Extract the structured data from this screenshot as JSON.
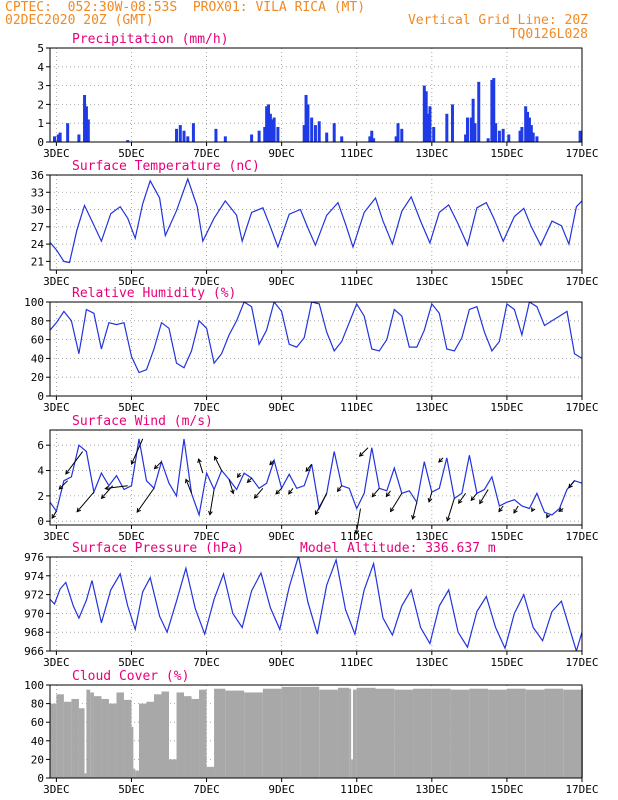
{
  "header": {
    "line1": "CPTEC:  052:30W-08:53S  PROX01: VILA RICA (MT)",
    "line2_left": "02DEC2020 20Z (GMT)",
    "line2_right": "Vertical Grid Line: 20Z",
    "line3_right": "TQ0126L028"
  },
  "colors": {
    "header": "#f08a24",
    "title": "#e8007a",
    "line": "#2233dd",
    "bar": "#1f3be6",
    "cloud": "#a8a8a8",
    "arrow": "#000000",
    "grid": "#999999"
  },
  "x_ticks": [
    "3DEC",
    "5DEC",
    "7DEC",
    "9DEC",
    "11DEC",
    "13DEC",
    "15DEC",
    "17DEC"
  ],
  "chart_data": [
    {
      "type": "bar",
      "title": "Precipitation (mm/h)",
      "ylim": [
        0,
        5
      ],
      "yticks": [
        0,
        1,
        2,
        3,
        4,
        5
      ],
      "x_range_days": [
        2.83,
        17.0
      ],
      "x_unit": "day of DEC 2020",
      "x": [
        2.95,
        3.05,
        3.1,
        3.3,
        3.6,
        3.75,
        3.8,
        3.85,
        4.9,
        6.2,
        6.3,
        6.4,
        6.5,
        6.65,
        7.25,
        7.5,
        8.2,
        8.4,
        8.55,
        8.6,
        8.65,
        8.7,
        8.75,
        8.8,
        8.9,
        9.6,
        9.65,
        9.7,
        9.8,
        9.9,
        10.0,
        10.2,
        10.4,
        10.6,
        11.35,
        11.4,
        11.45,
        12.05,
        12.1,
        12.2,
        12.8,
        12.85,
        12.9,
        12.95,
        13.05,
        13.4,
        13.55,
        13.9,
        13.95,
        14.05,
        14.1,
        14.15,
        14.25,
        14.5,
        14.6,
        14.65,
        14.7,
        14.8,
        14.9,
        15.05,
        15.35,
        15.4,
        15.5,
        15.55,
        15.6,
        15.65,
        15.7,
        15.8,
        16.95
      ],
      "values": [
        0.3,
        0.4,
        0.5,
        1.0,
        0.4,
        2.5,
        1.9,
        1.2,
        0.1,
        0.7,
        0.9,
        0.6,
        0.3,
        1.0,
        0.7,
        0.3,
        0.4,
        0.6,
        0.8,
        1.9,
        2.0,
        1.5,
        1.2,
        1.3,
        0.8,
        0.9,
        2.5,
        2.0,
        1.3,
        0.9,
        1.1,
        0.5,
        1.0,
        0.3,
        0.3,
        0.6,
        0.2,
        0.3,
        1.0,
        0.7,
        3.0,
        2.7,
        1.5,
        1.9,
        0.8,
        1.5,
        2.0,
        0.4,
        1.3,
        1.3,
        2.3,
        1.0,
        3.2,
        0.2,
        3.3,
        3.4,
        1.0,
        0.6,
        0.7,
        0.4,
        0.6,
        0.8,
        1.9,
        1.6,
        1.3,
        0.9,
        0.5,
        0.3,
        0.6
      ]
    },
    {
      "type": "line",
      "title": "Surface Temperature (nC)",
      "ylim": [
        19.5,
        36
      ],
      "yticks": [
        21,
        24,
        27,
        30,
        33,
        36
      ],
      "x_range_days": [
        2.83,
        17.0
      ],
      "x": [
        2.83,
        3.0,
        3.2,
        3.35,
        3.55,
        3.75,
        3.95,
        4.2,
        4.45,
        4.7,
        4.9,
        5.1,
        5.3,
        5.5,
        5.75,
        5.9,
        6.2,
        6.5,
        6.75,
        6.9,
        7.2,
        7.5,
        7.8,
        7.95,
        8.2,
        8.5,
        8.7,
        8.9,
        9.2,
        9.5,
        9.7,
        9.9,
        10.2,
        10.5,
        10.7,
        10.9,
        11.2,
        11.5,
        11.7,
        11.95,
        12.2,
        12.45,
        12.7,
        12.95,
        13.2,
        13.45,
        13.7,
        13.95,
        14.2,
        14.45,
        14.65,
        14.9,
        15.2,
        15.45,
        15.65,
        15.9,
        16.2,
        16.45,
        16.65,
        16.85,
        17.0
      ],
      "values": [
        24.3,
        23.0,
        21.0,
        20.8,
        26.5,
        30.7,
        28.0,
        24.5,
        29.3,
        30.5,
        28.5,
        25.0,
        31.0,
        35.0,
        32.0,
        25.5,
        29.8,
        35.3,
        30.5,
        24.5,
        28.5,
        31.5,
        29.0,
        24.5,
        29.5,
        30.3,
        27.0,
        23.5,
        29.2,
        30.0,
        26.8,
        23.8,
        29.0,
        31.2,
        27.5,
        23.5,
        29.5,
        32.0,
        28.0,
        24.0,
        29.7,
        32.2,
        28.0,
        24.2,
        29.5,
        30.8,
        27.5,
        23.8,
        30.3,
        31.2,
        28.5,
        24.5,
        28.8,
        30.2,
        27.0,
        23.8,
        28.0,
        27.2,
        24.0,
        30.5,
        31.5
      ]
    },
    {
      "type": "line",
      "title": "Relative Humidity (%)",
      "ylim": [
        0,
        100
      ],
      "yticks": [
        0,
        20,
        40,
        60,
        80,
        100
      ],
      "x_range_days": [
        2.83,
        17.0
      ],
      "x": [
        2.83,
        3.0,
        3.2,
        3.4,
        3.6,
        3.8,
        4.0,
        4.2,
        4.4,
        4.6,
        4.8,
        5.0,
        5.2,
        5.4,
        5.6,
        5.8,
        6.0,
        6.2,
        6.4,
        6.6,
        6.8,
        7.0,
        7.2,
        7.4,
        7.6,
        7.8,
        8.0,
        8.2,
        8.4,
        8.6,
        8.8,
        9.0,
        9.2,
        9.4,
        9.6,
        9.8,
        10.0,
        10.2,
        10.4,
        10.6,
        10.8,
        11.0,
        11.2,
        11.4,
        11.6,
        11.8,
        12.0,
        12.2,
        12.4,
        12.6,
        12.8,
        13.0,
        13.2,
        13.4,
        13.6,
        13.8,
        14.0,
        14.2,
        14.4,
        14.6,
        14.8,
        15.0,
        15.2,
        15.4,
        15.6,
        15.8,
        16.0,
        16.2,
        16.4,
        16.6,
        16.8,
        17.0
      ],
      "values": [
        70,
        78,
        90,
        80,
        45,
        92,
        88,
        50,
        78,
        76,
        78,
        42,
        25,
        28,
        50,
        78,
        72,
        35,
        30,
        48,
        80,
        72,
        35,
        45,
        65,
        80,
        100,
        95,
        55,
        70,
        100,
        90,
        55,
        52,
        62,
        100,
        98,
        68,
        48,
        58,
        78,
        98,
        85,
        50,
        48,
        60,
        92,
        85,
        52,
        52,
        70,
        98,
        88,
        50,
        48,
        62,
        92,
        95,
        68,
        48,
        58,
        98,
        92,
        65,
        100,
        95,
        75,
        80,
        85,
        90,
        45,
        40
      ],
      "extra_points": [
        [
          16.7,
          35
        ],
        [
          16.95,
          60
        ]
      ]
    },
    {
      "type": "line",
      "title": "Surface Wind (m/s)",
      "ylim": [
        -0.3,
        7.2
      ],
      "yticks": [
        0,
        2,
        4,
        6
      ],
      "x_range_days": [
        2.83,
        17.0
      ],
      "x": [
        2.83,
        3.0,
        3.2,
        3.4,
        3.6,
        3.8,
        4.0,
        4.2,
        4.4,
        4.6,
        4.8,
        5.0,
        5.2,
        5.4,
        5.6,
        5.8,
        6.0,
        6.2,
        6.4,
        6.6,
        6.8,
        7.0,
        7.2,
        7.4,
        7.6,
        7.8,
        8.0,
        8.2,
        8.4,
        8.6,
        8.8,
        9.0,
        9.2,
        9.4,
        9.6,
        9.8,
        10.0,
        10.2,
        10.4,
        10.6,
        10.8,
        11.0,
        11.2,
        11.4,
        11.6,
        11.8,
        12.0,
        12.2,
        12.4,
        12.6,
        12.8,
        13.0,
        13.2,
        13.4,
        13.6,
        13.8,
        14.0,
        14.2,
        14.4,
        14.6,
        14.8,
        15.0,
        15.2,
        15.4,
        15.6,
        15.8,
        16.0,
        16.2,
        16.4,
        16.6,
        16.8,
        17.0
      ],
      "values": [
        1.5,
        0.8,
        3.2,
        3.5,
        6.0,
        5.5,
        2.3,
        3.8,
        2.8,
        3.6,
        2.5,
        2.8,
        6.5,
        3.2,
        2.6,
        4.7,
        3.0,
        2.0,
        6.5,
        2.2,
        0.5,
        3.8,
        2.5,
        4.0,
        3.3,
        2.5,
        3.8,
        3.4,
        2.6,
        3.0,
        4.8,
        2.6,
        3.7,
        2.6,
        2.8,
        4.5,
        1.0,
        2.2,
        5.5,
        2.8,
        2.6,
        1.0,
        2.2,
        5.8,
        2.6,
        2.4,
        4.2,
        2.2,
        2.4,
        1.5,
        4.7,
        2.3,
        2.6,
        5.0,
        1.8,
        2.2,
        5.2,
        2.2,
        2.5,
        3.5,
        1.2,
        1.5,
        1.7,
        1.2,
        1.0,
        2.2,
        0.7,
        0.5,
        1.0,
        2.5,
        3.2,
        3.0
      ],
      "arrows": [
        [
          3.0,
          -0.3,
          0.5
        ],
        [
          3.3,
          -0.6,
          0.6
        ],
        [
          3.7,
          -1.2,
          1.6
        ],
        [
          4.0,
          -1.2,
          1.4
        ],
        [
          4.5,
          -0.8,
          0.9
        ],
        [
          4.9,
          -1.6,
          0.2
        ],
        [
          5.3,
          -0.8,
          1.8
        ],
        [
          5.6,
          -1.2,
          1.7
        ],
        [
          5.8,
          -0.5,
          0.5
        ],
        [
          6.6,
          -0.4,
          -1.0
        ],
        [
          6.9,
          -0.3,
          -1.0
        ],
        [
          7.2,
          -0.3,
          1.8
        ],
        [
          7.4,
          -0.5,
          -1.0
        ],
        [
          7.6,
          0.3,
          1.0
        ],
        [
          7.9,
          -0.2,
          0.3
        ],
        [
          8.2,
          -0.3,
          0.3
        ],
        [
          8.5,
          -0.6,
          0.7
        ],
        [
          8.8,
          -0.3,
          0.3
        ],
        [
          9.0,
          -0.4,
          0.4
        ],
        [
          9.3,
          -0.3,
          0.4
        ],
        [
          9.8,
          -0.4,
          0.5
        ],
        [
          10.2,
          -0.8,
          1.5
        ],
        [
          10.6,
          -0.3,
          0.4
        ],
        [
          11.1,
          -0.3,
          1.8
        ],
        [
          11.3,
          -0.6,
          0.6
        ],
        [
          11.6,
          -0.5,
          0.6
        ],
        [
          11.9,
          -0.3,
          0.4
        ],
        [
          12.2,
          -0.8,
          1.3
        ],
        [
          12.6,
          -0.3,
          1.2
        ],
        [
          13.0,
          -0.2,
          0.7
        ],
        [
          13.3,
          -0.3,
          0.3
        ],
        [
          13.6,
          -0.5,
          1.6
        ],
        [
          13.9,
          -0.5,
          0.7
        ],
        [
          14.2,
          -0.4,
          0.5
        ],
        [
          14.5,
          -0.6,
          1.0
        ],
        [
          14.9,
          -0.3,
          0.4
        ],
        [
          15.3,
          -0.3,
          0.5
        ],
        [
          15.7,
          -0.1,
          0.2
        ],
        [
          16.1,
          -0.1,
          0.2
        ],
        [
          16.5,
          -0.3,
          0.2
        ],
        [
          16.8,
          -0.4,
          0.5
        ]
      ]
    },
    {
      "type": "line",
      "title": "Surface Pressure (hPa)",
      "subtitle": "Model Altitude: 336.637 m",
      "ylim": [
        966,
        976
      ],
      "yticks": [
        966,
        968,
        970,
        972,
        974,
        976
      ],
      "x_range_days": [
        2.83,
        17.0
      ],
      "x": [
        2.83,
        2.95,
        3.1,
        3.25,
        3.45,
        3.6,
        3.8,
        3.95,
        4.2,
        4.45,
        4.7,
        4.9,
        5.1,
        5.3,
        5.5,
        5.75,
        5.95,
        6.2,
        6.45,
        6.7,
        6.95,
        7.2,
        7.45,
        7.7,
        7.95,
        8.2,
        8.45,
        8.7,
        8.95,
        9.2,
        9.45,
        9.7,
        9.95,
        10.2,
        10.45,
        10.7,
        10.95,
        11.2,
        11.45,
        11.7,
        11.95,
        12.2,
        12.45,
        12.7,
        12.95,
        13.2,
        13.45,
        13.7,
        13.95,
        14.2,
        14.45,
        14.7,
        14.95,
        15.2,
        15.45,
        15.7,
        15.95,
        16.2,
        16.45,
        16.7,
        16.85,
        17.0
      ],
      "values": [
        971.5,
        971.0,
        972.6,
        973.3,
        970.8,
        969.5,
        971.4,
        973.5,
        969.0,
        972.5,
        974.2,
        970.8,
        968.3,
        972.3,
        973.8,
        969.7,
        968.0,
        971.3,
        974.8,
        970.5,
        967.8,
        971.5,
        974.2,
        970.0,
        968.5,
        972.4,
        974.3,
        970.6,
        968.3,
        972.8,
        976.1,
        971.2,
        967.8,
        973.0,
        975.7,
        970.4,
        967.8,
        972.5,
        975.3,
        969.5,
        967.7,
        970.8,
        972.5,
        968.5,
        966.8,
        970.8,
        972.5,
        968.0,
        966.4,
        970.2,
        971.8,
        968.5,
        966.3,
        970.0,
        972.0,
        968.5,
        967.1,
        970.2,
        971.3,
        968.0,
        966.0,
        968.0
      ]
    },
    {
      "type": "area",
      "title": "Cloud Cover (%)",
      "ylim": [
        0,
        100
      ],
      "yticks": [
        0,
        20,
        40,
        60,
        80,
        100
      ],
      "x_range_days": [
        2.83,
        17.0
      ],
      "x": [
        2.83,
        3.0,
        3.2,
        3.4,
        3.6,
        3.75,
        3.8,
        3.9,
        4.0,
        4.2,
        4.4,
        4.6,
        4.8,
        5.0,
        5.05,
        5.1,
        5.2,
        5.4,
        5.6,
        5.8,
        6.0,
        6.2,
        6.4,
        6.6,
        6.8,
        7.0,
        7.2,
        7.5,
        8.0,
        8.5,
        9.0,
        9.5,
        10.0,
        10.5,
        10.8,
        10.85,
        10.9,
        11.0,
        11.5,
        12.0,
        12.5,
        13.0,
        13.5,
        14.0,
        14.5,
        15.0,
        15.5,
        16.0,
        16.5,
        17.0
      ],
      "values": [
        80,
        90,
        82,
        85,
        75,
        5,
        95,
        92,
        88,
        85,
        80,
        92,
        84,
        55,
        10,
        8,
        80,
        82,
        90,
        93,
        20,
        92,
        88,
        85,
        95,
        12,
        96,
        94,
        92,
        96,
        98,
        98,
        95,
        97,
        96,
        20,
        95,
        97,
        96,
        95,
        96,
        96,
        95,
        96,
        95,
        96,
        95,
        96,
        95,
        97
      ]
    }
  ]
}
